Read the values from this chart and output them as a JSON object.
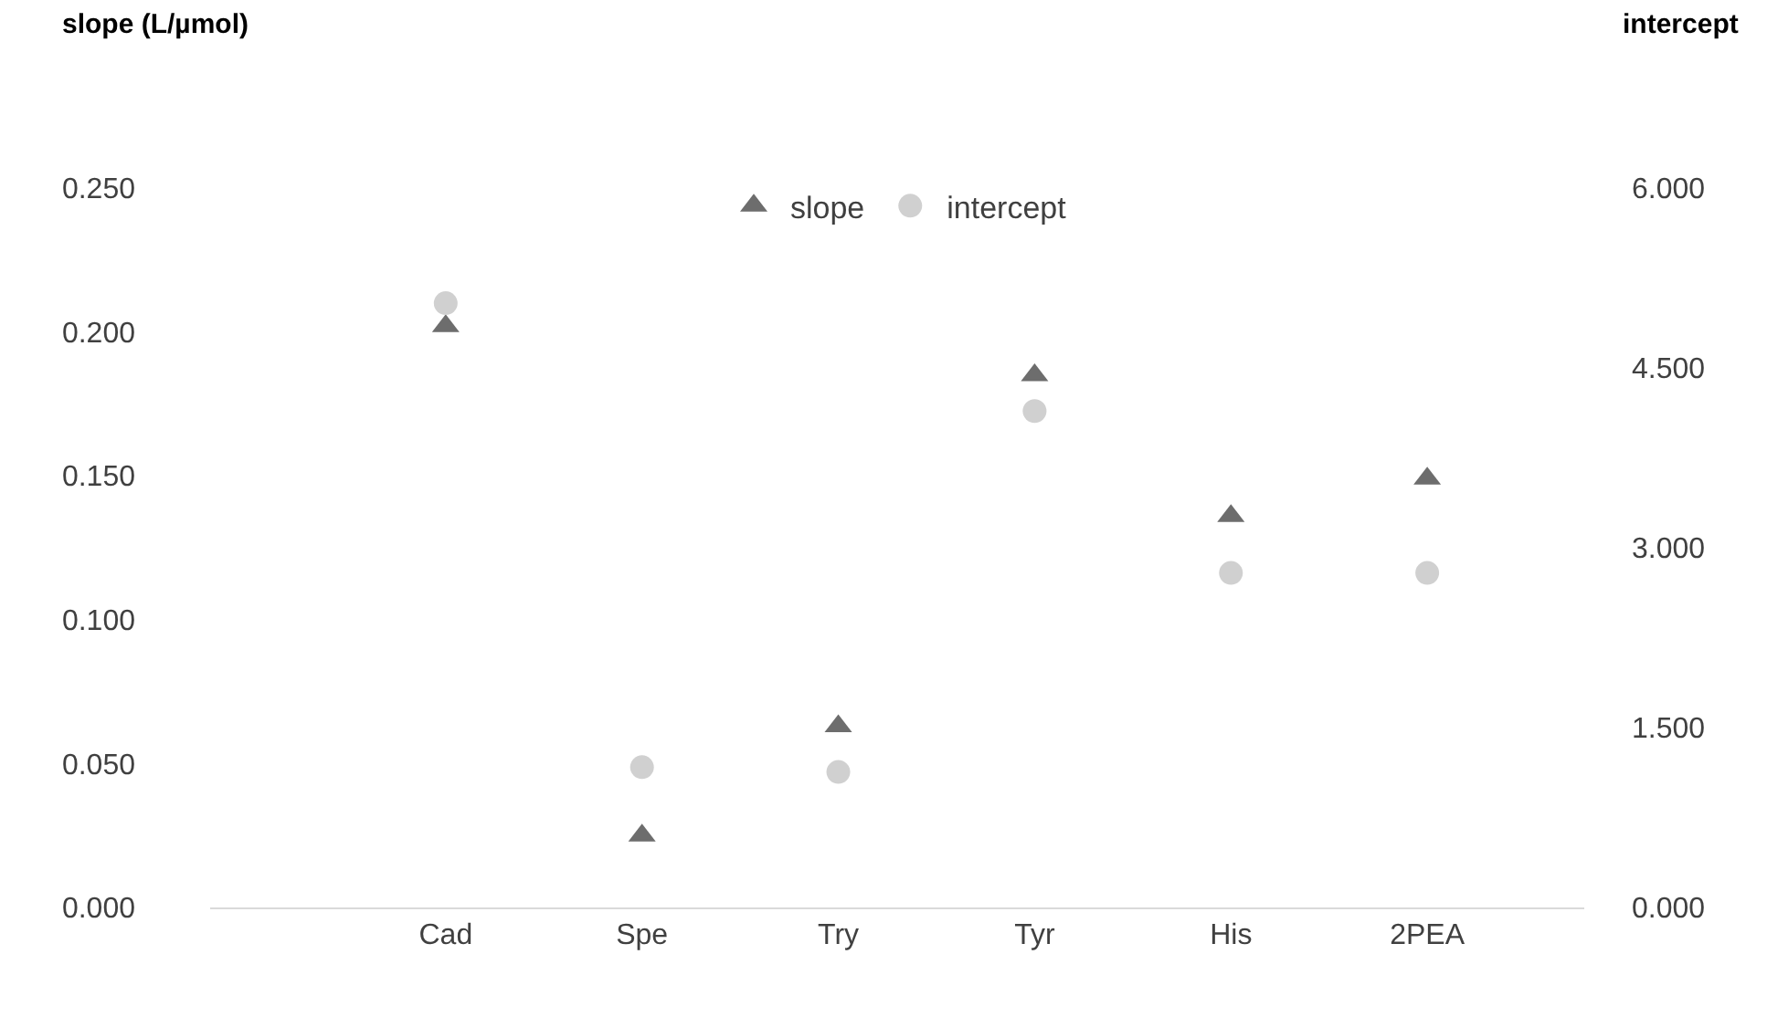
{
  "chart_data": {
    "type": "scatter",
    "ylabel": "slope (L/µmol)",
    "y2label": "intercept",
    "categories": [
      "Cad",
      "Spe",
      "Try",
      "Tyr",
      "His",
      "2PEA"
    ],
    "series": [
      {
        "name": "slope",
        "color": "#6d6d6d",
        "marker": "triangle",
        "values": [
          0.202,
          0.025,
          0.063,
          0.185,
          0.136,
          0.149
        ]
      },
      {
        "name": "intercept",
        "color": "#d0d0d0",
        "marker": "circle",
        "axis": "y2",
        "values": [
          5.04,
          1.17,
          1.13,
          4.14,
          2.79,
          2.79
        ]
      }
    ],
    "ylim": [
      0,
      0.25
    ],
    "yticks": [
      {
        "value": 0,
        "label": "0.000"
      },
      {
        "value": 0.05,
        "label": "0.050"
      },
      {
        "value": 0.1,
        "label": "0.100"
      },
      {
        "value": 0.15,
        "label": "0.150"
      },
      {
        "value": 0.2,
        "label": "0.200"
      },
      {
        "value": 0.25,
        "label": "0.250"
      }
    ],
    "y2lim": [
      0,
      6
    ],
    "y2ticks": [
      {
        "value": 0,
        "label": "0.000"
      },
      {
        "value": 1.5,
        "label": "1.500"
      },
      {
        "value": 3,
        "label": "3.000"
      },
      {
        "value": 4.5,
        "label": "4.500"
      },
      {
        "value": 6,
        "label": "6.000"
      }
    ],
    "grid": false,
    "legend": "top"
  }
}
